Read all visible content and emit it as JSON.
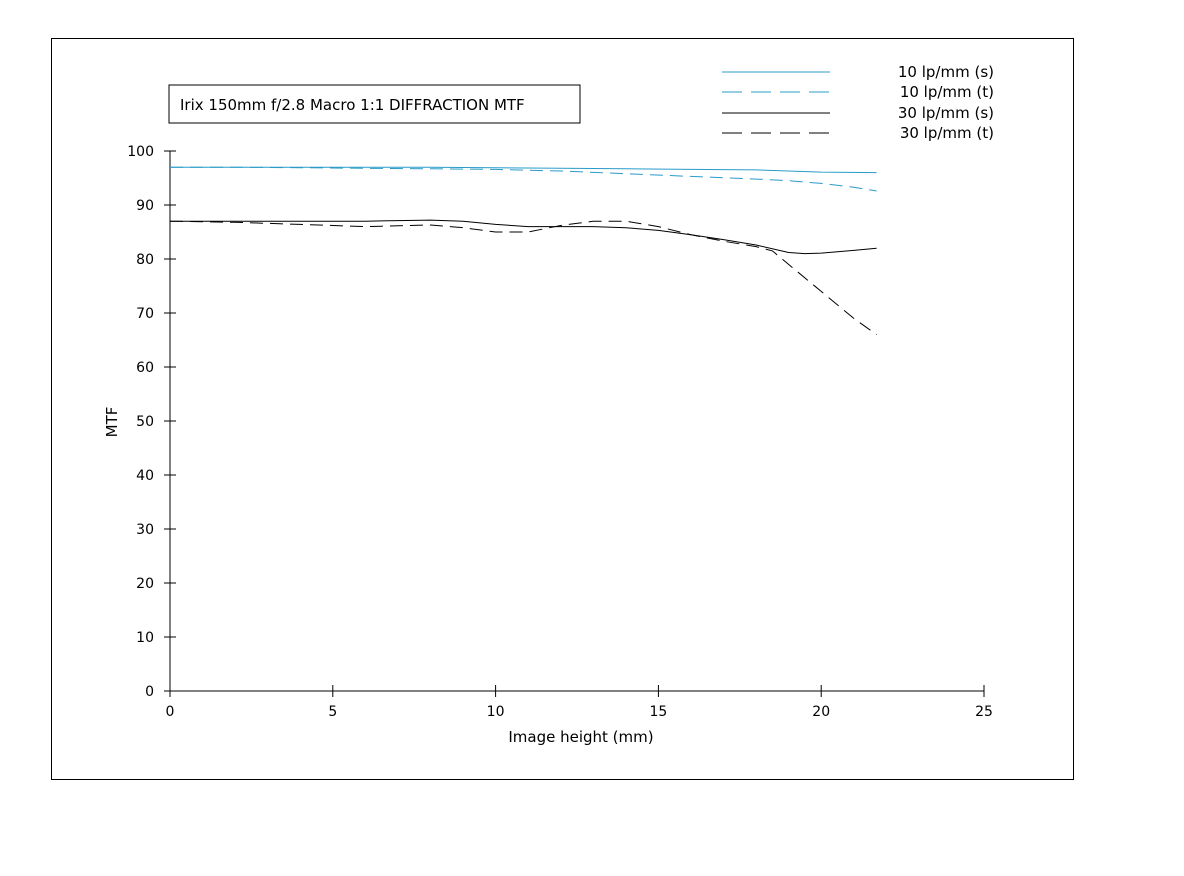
{
  "chart_data": {
    "type": "line",
    "title": "Irix 150mm f/2.8 Macro 1:1   DIFFRACTION MTF",
    "xlabel": "Image height (mm)",
    "ylabel": "MTF",
    "xlim": [
      0,
      25
    ],
    "ylim": [
      0,
      100
    ],
    "xticks": [
      0,
      5,
      10,
      15,
      20,
      25
    ],
    "yticks": [
      0,
      10,
      20,
      30,
      40,
      50,
      60,
      70,
      80,
      90,
      100
    ],
    "grid": false,
    "legend_position": "top-right",
    "series": [
      {
        "name": "10 lp/mm (s)",
        "color": "#2a9bc8",
        "dash": "solid",
        "x": [
          0,
          2,
          4,
          6,
          8,
          10,
          12,
          14,
          16,
          18,
          20,
          21.7
        ],
        "y": [
          97.0,
          97.0,
          97.0,
          97.0,
          97.0,
          96.9,
          96.8,
          96.7,
          96.6,
          96.5,
          96.1,
          96.0
        ]
      },
      {
        "name": "10 lp/mm (t)",
        "color": "#2a9bc8",
        "dash": "dashed",
        "x": [
          0,
          2,
          4,
          6,
          8,
          10,
          12,
          14,
          16,
          18,
          19,
          20,
          21,
          21.7
        ],
        "y": [
          97.0,
          97.0,
          96.9,
          96.8,
          96.7,
          96.6,
          96.3,
          95.8,
          95.3,
          94.8,
          94.5,
          94.0,
          93.3,
          92.6
        ]
      },
      {
        "name": "30 lp/mm (s)",
        "color": "#000000",
        "dash": "solid",
        "x": [
          0,
          2,
          4,
          6,
          8,
          9,
          10,
          11,
          12,
          13,
          14,
          15,
          16,
          17,
          18,
          19,
          19.5,
          20,
          21,
          21.7
        ],
        "y": [
          87.0,
          87.0,
          87.0,
          87.0,
          87.2,
          87.0,
          86.4,
          86.0,
          86.0,
          86.0,
          85.8,
          85.3,
          84.5,
          83.6,
          82.6,
          81.2,
          81.0,
          81.1,
          81.6,
          82.0
        ]
      },
      {
        "name": "30 lp/mm (t)",
        "color": "#000000",
        "dash": "dashed",
        "x": [
          0,
          2,
          4,
          6,
          8,
          9,
          10,
          11,
          12,
          13,
          14,
          15,
          16,
          17,
          18,
          18.5,
          19,
          20,
          21,
          21.7
        ],
        "y": [
          87.0,
          86.8,
          86.4,
          86.0,
          86.3,
          85.8,
          85.0,
          85.0,
          86.2,
          87.0,
          87.0,
          86.0,
          84.5,
          83.3,
          82.3,
          81.5,
          79.0,
          74.0,
          69.0,
          66.0
        ]
      }
    ]
  }
}
